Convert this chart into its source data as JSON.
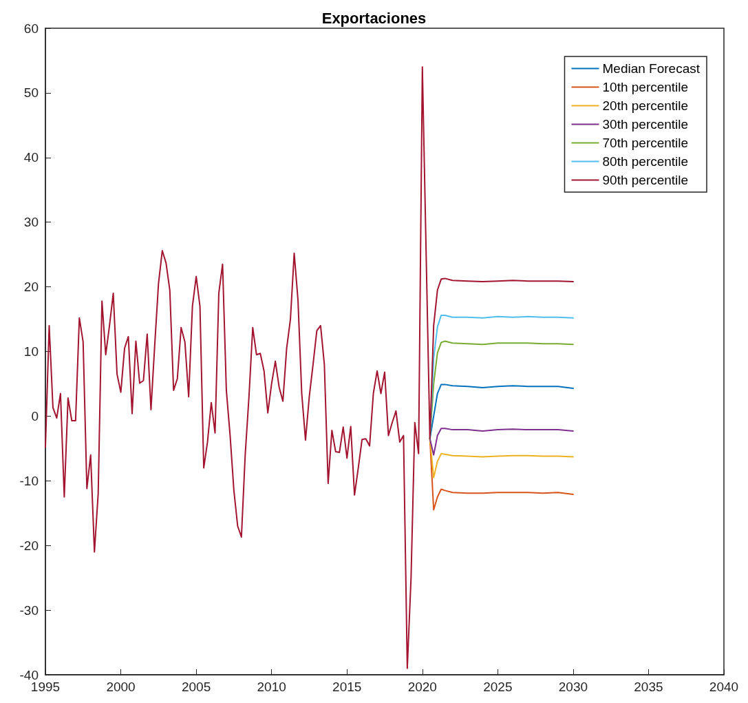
{
  "chart_data": {
    "type": "line",
    "title": "Exportaciones",
    "xlim": [
      1995,
      2040
    ],
    "xticks": [
      1995,
      2000,
      2005,
      2010,
      2015,
      2020,
      2025,
      2030,
      2035,
      2040
    ],
    "ylim": [
      -40,
      60
    ],
    "yticks": [
      -40,
      -30,
      -20,
      -10,
      0,
      10,
      20,
      30,
      40,
      50,
      60
    ],
    "grid": false,
    "legend": "top right",
    "line_style": "solid",
    "marker": "none",
    "series": [
      {
        "name": "Median Forecast",
        "color": "#0072bd",
        "x": [
          2020.5,
          2020.75,
          2021,
          2021.25,
          2021.5,
          2022,
          2023,
          2024,
          2025,
          2026,
          2027,
          2028,
          2029,
          2030
        ],
        "values": [
          -3.5,
          0,
          3.5,
          4.9,
          4.9,
          4.7,
          4.6,
          4.4,
          4.6,
          4.7,
          4.6,
          4.6,
          4.6,
          4.3
        ]
      },
      {
        "name": "10th percentile",
        "color": "#d95319",
        "x": [
          2020.5,
          2020.75,
          2021,
          2021.25,
          2021.5,
          2022,
          2023,
          2024,
          2025,
          2026,
          2027,
          2028,
          2029,
          2030
        ],
        "values": [
          -3.5,
          -14.5,
          -12.5,
          -11.3,
          -11.5,
          -11.8,
          -11.9,
          -11.9,
          -11.8,
          -11.8,
          -11.8,
          -11.9,
          -11.8,
          -12.1
        ]
      },
      {
        "name": "20th percentile",
        "color": "#edb120",
        "x": [
          2020.5,
          2020.75,
          2021,
          2021.25,
          2021.5,
          2022,
          2023,
          2024,
          2025,
          2026,
          2027,
          2028,
          2029,
          2030
        ],
        "values": [
          -3.5,
          -9.5,
          -7,
          -5.8,
          -5.9,
          -6.1,
          -6.2,
          -6.3,
          -6.2,
          -6.1,
          -6.1,
          -6.2,
          -6.2,
          -6.3
        ]
      },
      {
        "name": "30th percentile",
        "color": "#7e2f8e",
        "x": [
          2020.5,
          2020.75,
          2021,
          2021.25,
          2021.5,
          2022,
          2023,
          2024,
          2025,
          2026,
          2027,
          2028,
          2029,
          2030
        ],
        "values": [
          -3.5,
          -6,
          -3,
          -1.9,
          -1.9,
          -2.1,
          -2.1,
          -2.3,
          -2.1,
          -2,
          -2.1,
          -2.1,
          -2.1,
          -2.3
        ]
      },
      {
        "name": "70th percentile",
        "color": "#77ac30",
        "x": [
          2020.5,
          2020.75,
          2021,
          2021.25,
          2021.5,
          2022,
          2023,
          2024,
          2025,
          2026,
          2027,
          2028,
          2029,
          2030
        ],
        "values": [
          -3.5,
          5,
          9.8,
          11.4,
          11.6,
          11.3,
          11.2,
          11.1,
          11.3,
          11.3,
          11.3,
          11.2,
          11.2,
          11.1
        ]
      },
      {
        "name": "80th percentile",
        "color": "#4dbeee",
        "x": [
          2020.5,
          2020.75,
          2021,
          2021.25,
          2021.5,
          2022,
          2023,
          2024,
          2025,
          2026,
          2027,
          2028,
          2029,
          2030
        ],
        "values": [
          -3.5,
          9,
          13.8,
          15.6,
          15.6,
          15.3,
          15.3,
          15.2,
          15.4,
          15.3,
          15.4,
          15.3,
          15.3,
          15.2
        ]
      },
      {
        "name": "90th percentile",
        "color": "#a2142f",
        "x": [
          1995,
          1995.25,
          1995.5,
          1995.75,
          1996,
          1996.25,
          1996.5,
          1996.75,
          1997,
          1997.25,
          1997.5,
          1997.75,
          1998,
          1998.25,
          1998.5,
          1998.75,
          1999,
          1999.25,
          1999.5,
          1999.75,
          2000,
          2000.25,
          2000.5,
          2000.75,
          2001,
          2001.25,
          2001.5,
          2001.75,
          2002,
          2002.25,
          2002.5,
          2002.75,
          2003,
          2003.25,
          2003.5,
          2003.75,
          2004,
          2004.25,
          2004.5,
          2004.75,
          2005,
          2005.25,
          2005.5,
          2005.75,
          2006,
          2006.25,
          2006.5,
          2006.75,
          2007,
          2007.25,
          2007.5,
          2007.75,
          2008,
          2008.25,
          2008.5,
          2008.75,
          2009,
          2009.25,
          2009.5,
          2009.75,
          2010,
          2010.25,
          2010.5,
          2010.75,
          2011,
          2011.25,
          2011.5,
          2011.75,
          2012,
          2012.25,
          2012.5,
          2012.75,
          2013,
          2013.25,
          2013.5,
          2013.75,
          2014,
          2014.25,
          2014.5,
          2014.75,
          2015,
          2015.25,
          2015.5,
          2015.75,
          2016,
          2016.25,
          2016.5,
          2016.75,
          2017,
          2017.25,
          2017.5,
          2017.75,
          2018,
          2018.25,
          2018.5,
          2018.75,
          2019,
          2019.25,
          2019.5,
          2019.75,
          2020,
          2020.5,
          2020.75,
          2021,
          2021.25,
          2021.5,
          2022,
          2023,
          2024,
          2025,
          2026,
          2027,
          2028,
          2029,
          2030
        ],
        "values": [
          -4.8,
          14,
          1.3,
          -0.3,
          3.5,
          -12.5,
          2.8,
          -0.7,
          -0.7,
          15.2,
          11.5,
          -11.2,
          -6,
          -21,
          -12,
          17.8,
          9.5,
          14,
          19,
          6.5,
          3.7,
          10.5,
          12.3,
          0.4,
          11.6,
          5.1,
          5.5,
          12.7,
          1,
          11,
          20.5,
          25.6,
          23.7,
          19.5,
          4,
          5.8,
          13.7,
          11.5,
          3,
          17,
          21.6,
          17,
          -8,
          -4,
          2.1,
          -2.6,
          19,
          23.5,
          4,
          -3,
          -11.5,
          -17,
          -18.7,
          -6,
          3,
          13.7,
          9.5,
          9.7,
          7,
          0.5,
          5,
          8.5,
          4.5,
          2.3,
          10.5,
          15,
          25.2,
          18,
          3.5,
          -3.7,
          3,
          8,
          13.2,
          14,
          8,
          -10.4,
          -2.2,
          -5.5,
          -5.6,
          -1.7,
          -6.5,
          -1.6,
          -12.2,
          -8,
          -3.6,
          -3.5,
          -4.6,
          3.5,
          7,
          3.5,
          6.8,
          -3,
          -1,
          0.8,
          -4,
          -3,
          -39,
          -25,
          -1,
          -5.8,
          54,
          -3.5,
          14,
          19.5,
          21.2,
          21.3,
          21,
          20.9,
          20.8,
          20.9,
          21,
          20.9,
          20.9,
          20.9,
          20.8
        ]
      }
    ]
  }
}
